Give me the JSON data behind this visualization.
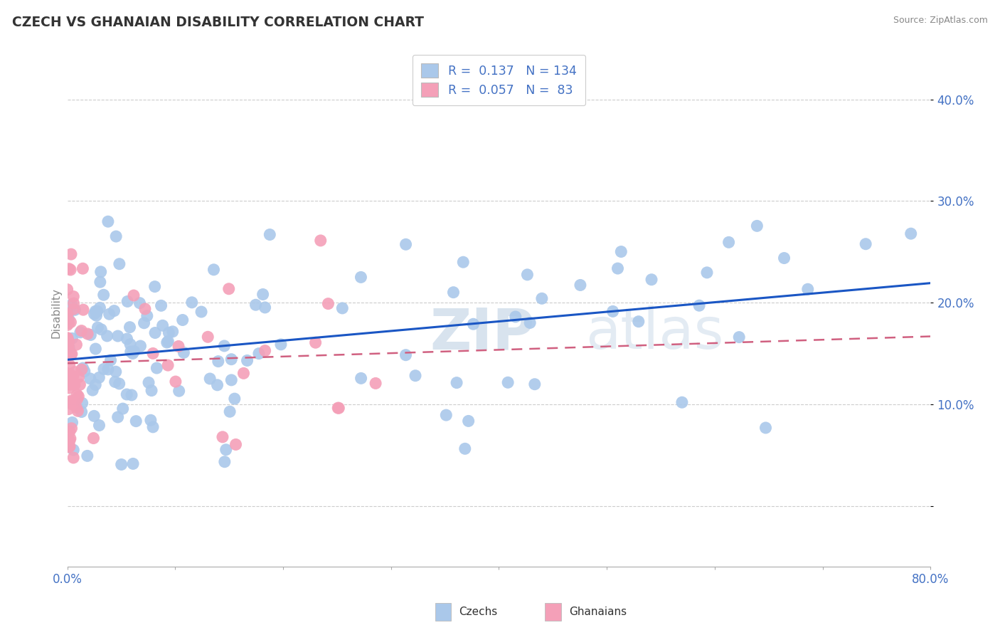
{
  "title": "CZECH VS GHANAIAN DISABILITY CORRELATION CHART",
  "source_text": "Source: ZipAtlas.com",
  "ylabel": "Disability",
  "watermark": "ZIPatlas",
  "xlim": [
    0.0,
    0.8
  ],
  "ylim": [
    -0.06,
    0.44
  ],
  "yticks": [
    0.0,
    0.1,
    0.2,
    0.3,
    0.4
  ],
  "ytick_labels": [
    "",
    "10.0%",
    "20.0%",
    "30.0%",
    "40.0%"
  ],
  "czech_color": "#aac8ea",
  "czech_line_color": "#1a56c4",
  "ghanaian_color": "#f4a0b8",
  "ghanaian_line_color": "#d06080",
  "czech_R": 0.137,
  "czech_N": 134,
  "ghanaian_R": 0.057,
  "ghanaian_N": 83,
  "background_color": "#ffffff",
  "grid_color": "#cccccc",
  "tick_color": "#4472c4",
  "title_color": "#333333",
  "source_color": "#888888",
  "ylabel_color": "#888888"
}
